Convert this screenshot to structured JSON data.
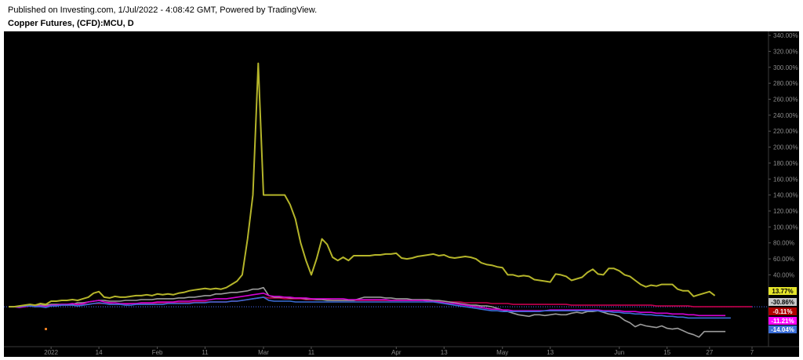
{
  "header": {
    "published": "Published on Investing.com, 1/Jul/2022 - 4:08:42 GMT, Powered by TradingView.",
    "symbol": "Copper Futures, (CFD):MCU, D"
  },
  "colors": {
    "background": "#000000",
    "axis_text": "#8a8a8a",
    "baseline": "#4a6cff"
  },
  "chart_data": {
    "type": "line",
    "ylim": [
      -50,
      345
    ],
    "y_ticks": [
      340,
      320,
      300,
      280,
      260,
      240,
      220,
      200,
      180,
      160,
      140,
      120,
      100,
      80,
      60,
      40,
      20
    ],
    "y_tick_labels": [
      "340.00%",
      "320.00%",
      "300.00%",
      "280.00%",
      "260.00%",
      "240.00%",
      "220.00%",
      "200.00%",
      "180.00%",
      "160.00%",
      "140.00%",
      "120.00%",
      "100.00%",
      "80.00%",
      "60.00%",
      "40.00%",
      "20.00%"
    ],
    "x_ticks": [
      {
        "label": "2022",
        "i": 8
      },
      {
        "label": "14",
        "i": 17
      },
      {
        "label": "Feb",
        "i": 28
      },
      {
        "label": "11",
        "i": 37
      },
      {
        "label": "Mar",
        "i": 48
      },
      {
        "label": "11",
        "i": 57
      },
      {
        "label": "Apr",
        "i": 73
      },
      {
        "label": "13",
        "i": 82
      },
      {
        "label": "May",
        "i": 93
      },
      {
        "label": "13",
        "i": 102
      },
      {
        "label": "Jun",
        "i": 115
      },
      {
        "label": "15",
        "i": 124
      },
      {
        "label": "27",
        "i": 132
      },
      {
        "label": "7",
        "i": 140
      }
    ],
    "x_domain": [
      0,
      140
    ],
    "series": [
      {
        "color": "#b5b52a",
        "last_label": "13.77%",
        "tag_bg": "#e5e52a",
        "tag_fg": "#000000",
        "values": [
          0,
          0,
          1,
          2,
          3,
          2,
          4,
          3,
          7,
          7,
          8,
          8,
          9,
          8,
          10,
          12,
          17,
          19,
          12,
          11,
          13,
          12,
          12,
          13,
          14,
          14,
          15,
          14,
          16,
          15,
          16,
          15,
          17,
          18,
          20,
          21,
          22,
          23,
          22,
          23,
          22,
          24,
          28,
          32,
          40,
          85,
          140,
          305,
          140,
          140,
          140,
          140,
          140,
          128,
          110,
          80,
          58,
          40,
          60,
          85,
          78,
          62,
          58,
          62,
          58,
          64,
          64,
          64,
          64,
          65,
          65,
          66,
          66,
          67,
          61,
          60,
          61,
          63,
          64,
          65,
          66,
          64,
          65,
          62,
          61,
          62,
          63,
          62,
          60,
          55,
          53,
          52,
          50,
          49,
          40,
          40,
          38,
          39,
          38,
          34,
          33,
          32,
          31,
          41,
          40,
          38,
          33,
          35,
          37,
          43,
          47,
          41,
          40,
          48,
          48,
          45,
          40,
          38,
          33,
          28,
          25,
          27,
          26,
          28,
          28,
          28,
          22,
          20,
          20,
          13,
          15,
          17,
          19,
          14
        ]
      },
      {
        "color": "#9c9c9c",
        "last_label": "-30.86%",
        "tag_bg": "#c8c8c8",
        "tag_fg": "#000000",
        "values": [
          0,
          0,
          0,
          1,
          2,
          2,
          2,
          2,
          3,
          3,
          3,
          3,
          3,
          5,
          5,
          6,
          7,
          8,
          8,
          7,
          7,
          7,
          8,
          8,
          8,
          9,
          9,
          9,
          10,
          10,
          10,
          10,
          11,
          11,
          12,
          12,
          13,
          14,
          14,
          16,
          16,
          17,
          18,
          18,
          19,
          20,
          22,
          22,
          24,
          14,
          12,
          12,
          12,
          11,
          11,
          11,
          10,
          10,
          9,
          9,
          8,
          8,
          8,
          8,
          8,
          8,
          10,
          12,
          12,
          12,
          12,
          11,
          11,
          10,
          10,
          10,
          9,
          9,
          9,
          9,
          8,
          8,
          7,
          6,
          5,
          4,
          3,
          2,
          2,
          1,
          1,
          0,
          -2,
          -4,
          -6,
          -8,
          -10,
          -11,
          -12,
          -10,
          -10,
          -11,
          -10,
          -9,
          -10,
          -10,
          -8,
          -7,
          -8,
          -6,
          -6,
          -5,
          -7,
          -9,
          -10,
          -12,
          -17,
          -20,
          -25,
          -22,
          -24,
          -25,
          -26,
          -24,
          -27,
          -28,
          -27,
          -30,
          -33,
          -35,
          -38,
          -31,
          -31,
          -31,
          -31,
          -31
        ]
      },
      {
        "color": "#c4004e",
        "last_label": "-0.11%",
        "tag_bg": "#b00000",
        "tag_fg": "#ffffff",
        "values": [
          0,
          0,
          0,
          1,
          1,
          1,
          1,
          1,
          2,
          2,
          2,
          2,
          2,
          3,
          3,
          3,
          4,
          4,
          4,
          4,
          3,
          3,
          3,
          4,
          4,
          4,
          4,
          4,
          5,
          5,
          5,
          5,
          5,
          5,
          5,
          6,
          6,
          6,
          6,
          6,
          6,
          6,
          7,
          7,
          8,
          9,
          10,
          11,
          12,
          11,
          11,
          11,
          10,
          10,
          10,
          10,
          9,
          9,
          9,
          9,
          9,
          8,
          8,
          8,
          8,
          8,
          8,
          8,
          8,
          8,
          8,
          8,
          8,
          8,
          8,
          8,
          8,
          8,
          8,
          8,
          7,
          7,
          7,
          6,
          6,
          6,
          5,
          5,
          5,
          5,
          5,
          4,
          4,
          4,
          4,
          3,
          3,
          3,
          3,
          3,
          3,
          3,
          3,
          3,
          3,
          3,
          2,
          2,
          2,
          2,
          2,
          2,
          2,
          2,
          2,
          2,
          2,
          2,
          2,
          2,
          2,
          2,
          1,
          1,
          1,
          1,
          1,
          1,
          1,
          0,
          0,
          0,
          0,
          0,
          0,
          0,
          0,
          0,
          0,
          0,
          0
        ]
      },
      {
        "color": "#d400d4",
        "last_label": "-11.21%",
        "tag_bg": "#ff00ff",
        "tag_fg": "#ffffff",
        "values": [
          0,
          0,
          -1,
          0,
          1,
          0,
          1,
          0,
          2,
          2,
          3,
          3,
          4,
          3,
          4,
          6,
          7,
          8,
          6,
          5,
          5,
          4,
          4,
          4,
          4,
          5,
          5,
          5,
          6,
          6,
          6,
          6,
          7,
          7,
          7,
          8,
          8,
          8,
          9,
          10,
          10,
          10,
          11,
          12,
          13,
          14,
          15,
          16,
          17,
          14,
          13,
          13,
          12,
          12,
          11,
          11,
          11,
          10,
          10,
          10,
          10,
          10,
          10,
          10,
          9,
          9,
          9,
          9,
          9,
          9,
          9,
          9,
          8,
          8,
          8,
          8,
          8,
          8,
          8,
          7,
          7,
          6,
          5,
          4,
          4,
          3,
          2,
          1,
          0,
          -1,
          -2,
          -3,
          -3,
          -4,
          -4,
          -5,
          -5,
          -5,
          -5,
          -5,
          -5,
          -5,
          -4,
          -4,
          -4,
          -4,
          -4,
          -4,
          -4,
          -4,
          -4,
          -4,
          -5,
          -5,
          -5,
          -5,
          -6,
          -6,
          -6,
          -7,
          -7,
          -7,
          -8,
          -8,
          -8,
          -9,
          -9,
          -9,
          -10,
          -10,
          -11,
          -11,
          -11,
          -11,
          -11,
          -11
        ]
      },
      {
        "color": "#3a6ed8",
        "last_label": "-14.04%",
        "tag_bg": "#3a6ed8",
        "tag_fg": "#ffffff",
        "values": [
          0,
          0,
          0,
          1,
          1,
          0,
          0,
          -1,
          1,
          1,
          2,
          2,
          2,
          1,
          2,
          3,
          4,
          5,
          4,
          3,
          3,
          3,
          2,
          2,
          3,
          3,
          3,
          3,
          3,
          3,
          4,
          4,
          4,
          4,
          4,
          5,
          5,
          5,
          6,
          6,
          6,
          6,
          7,
          7,
          8,
          9,
          10,
          11,
          12,
          8,
          7,
          7,
          7,
          7,
          6,
          6,
          6,
          6,
          6,
          6,
          6,
          6,
          6,
          6,
          6,
          6,
          6,
          6,
          6,
          6,
          6,
          6,
          6,
          6,
          6,
          6,
          6,
          6,
          6,
          6,
          6,
          5,
          4,
          3,
          2,
          1,
          0,
          -1,
          -2,
          -3,
          -4,
          -5,
          -5,
          -6,
          -6,
          -6,
          -6,
          -6,
          -6,
          -6,
          -6,
          -5,
          -5,
          -5,
          -5,
          -5,
          -5,
          -5,
          -5,
          -5,
          -5,
          -5,
          -6,
          -6,
          -7,
          -7,
          -8,
          -8,
          -9,
          -9,
          -10,
          -10,
          -11,
          -11,
          -12,
          -12,
          -13,
          -13,
          -14,
          -14,
          -14,
          -14,
          -14,
          -14,
          -14,
          -14,
          -14
        ]
      }
    ]
  }
}
